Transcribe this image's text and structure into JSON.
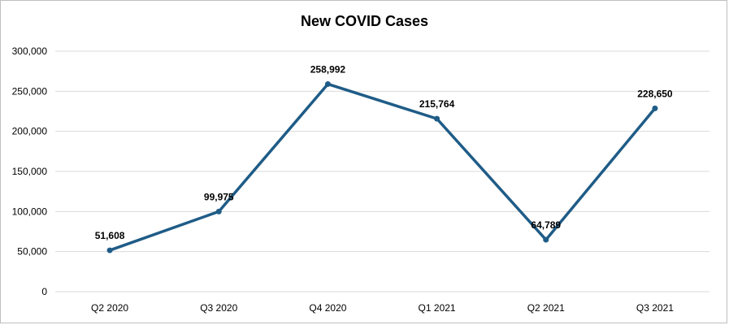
{
  "chart_data": {
    "type": "line",
    "title": "New COVID Cases",
    "xlabel": "",
    "ylabel": "",
    "categories": [
      "Q2 2020",
      "Q3 2020",
      "Q4 2020",
      "Q1 2021",
      "Q2 2021",
      "Q3 2021"
    ],
    "series": [
      {
        "values": [
          51608,
          99975,
          258992,
          215764,
          64789,
          228650
        ],
        "data_labels": [
          "51,608",
          "99,975",
          "258,992",
          "215,764",
          "64,789",
          "228,650"
        ],
        "color": "#1f5c87"
      }
    ],
    "ylim": [
      0,
      300000
    ],
    "yticks": [
      0,
      50000,
      100000,
      150000,
      200000,
      250000,
      300000
    ],
    "ytick_labels": [
      "0",
      "50,000",
      "100,000",
      "150,000",
      "200,000",
      "250,000",
      "300,000"
    ],
    "grid": true,
    "legend": "none"
  }
}
